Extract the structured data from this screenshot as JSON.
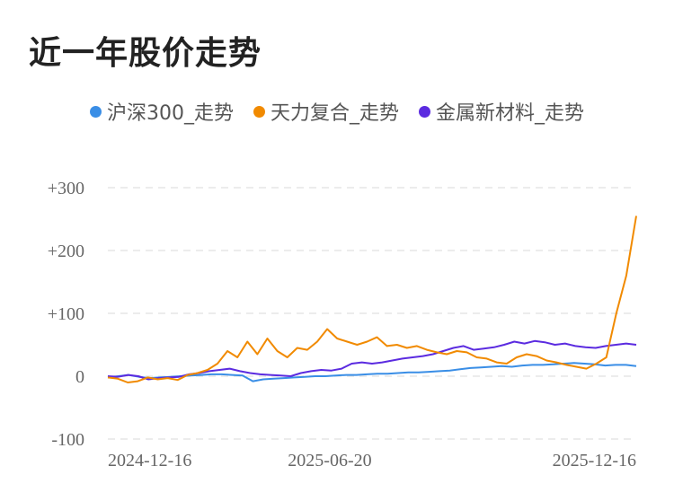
{
  "title": "近一年股价走势",
  "colors": {
    "hs300": "#3a8ee6",
    "tianli": "#f18a00",
    "jinshu": "#5b2be0",
    "grid": "#e6e6e6"
  },
  "chart_data": {
    "type": "line",
    "ylim": [
      -100,
      300
    ],
    "y_ticks": [
      -100,
      0,
      100,
      200,
      300
    ],
    "y_tick_labels": [
      "-100",
      "0",
      "+100",
      "+200",
      "+300"
    ],
    "x_tick_labels": [
      "2024-12-16",
      "2025-06-20",
      "2025-12-16"
    ],
    "x_tick_index": [
      0,
      0.42,
      1
    ],
    "grid": true,
    "legend": "top",
    "series": [
      {
        "name": "沪深300_走势",
        "color": "#3a8ee6",
        "values": [
          -2,
          0,
          2,
          -1,
          -3,
          -2,
          -1,
          0,
          1,
          2,
          3,
          3,
          2,
          1,
          -8,
          -5,
          -4,
          -3,
          -2,
          -1,
          0,
          0,
          1,
          2,
          2,
          3,
          4,
          4,
          5,
          6,
          6,
          7,
          8,
          9,
          11,
          13,
          14,
          15,
          16,
          15,
          17,
          18,
          18,
          19,
          20,
          21,
          20,
          19,
          17,
          18,
          18,
          16
        ]
      },
      {
        "name": "天力复合_走势",
        "color": "#f18a00",
        "values": [
          -2,
          -4,
          -10,
          -8,
          -2,
          -5,
          -3,
          -6,
          2,
          5,
          10,
          20,
          40,
          30,
          55,
          35,
          60,
          40,
          30,
          45,
          42,
          55,
          75,
          60,
          55,
          50,
          55,
          62,
          48,
          50,
          45,
          48,
          42,
          38,
          35,
          40,
          38,
          30,
          28,
          22,
          20,
          30,
          35,
          32,
          25,
          22,
          18,
          15,
          12,
          20,
          30,
          100,
          160,
          255
        ]
      },
      {
        "name": "金属新材料_走势",
        "color": "#5b2be0",
        "values": [
          0,
          -1,
          2,
          0,
          -5,
          -3,
          -2,
          -1,
          3,
          5,
          8,
          10,
          12,
          8,
          5,
          3,
          2,
          1,
          0,
          5,
          8,
          10,
          9,
          12,
          20,
          22,
          20,
          22,
          25,
          28,
          30,
          32,
          35,
          40,
          45,
          48,
          42,
          44,
          46,
          50,
          55,
          52,
          56,
          54,
          50,
          52,
          48,
          46,
          45,
          48,
          50,
          52,
          50
        ]
      }
    ]
  }
}
